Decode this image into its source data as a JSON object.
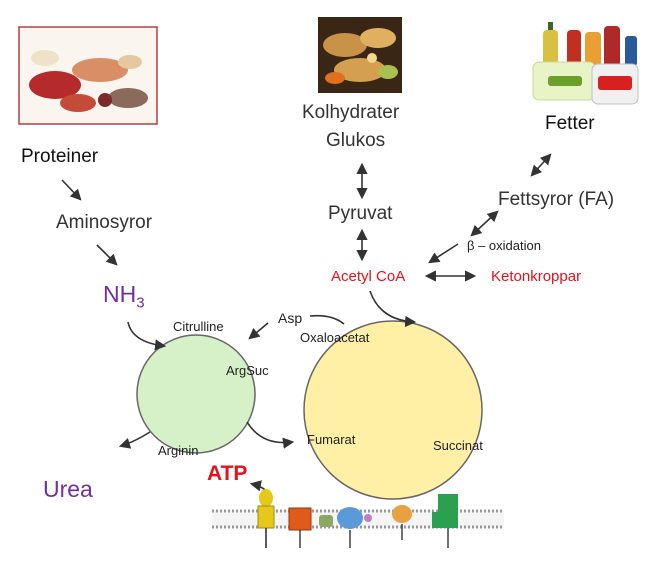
{
  "labels": {
    "proteiner": "Proteiner",
    "aminosyror": "Aminosyror",
    "nh3_base": "NH",
    "nh3_sub": "3",
    "urea": "Urea",
    "kolhydrater": "Kolhydrater",
    "glukos": "Glukos",
    "pyruvat": "Pyruvat",
    "acetyl_coa": "Acetyl CoA",
    "fetter": "Fetter",
    "fettsyror": "Fettsyror (FA)",
    "beta_oxidation": "β – oxidation",
    "ketonkroppar": "Ketonkroppar",
    "asp": "Asp",
    "oxaloacetat": "Oxaloacetat",
    "citrulline": "Citrulline",
    "argsuc": "ArgSuc",
    "arginin": "Arginin",
    "fumarat": "Fumarat",
    "succinat": "Succinat",
    "atp": "ATP"
  },
  "images": {
    "protein_photo": "meat-fish-eggs-photo",
    "carb_photo": "bread-vegetables-photo",
    "fat_photo": "oils-butter-margarine-photo",
    "membrane": "electron-transport-chain-membrane"
  },
  "colors": {
    "urea_cycle": "#d6f0c8",
    "tca_cycle": "#fff0a6",
    "red_text": "#e8101a",
    "purple_text": "#7030a0"
  }
}
